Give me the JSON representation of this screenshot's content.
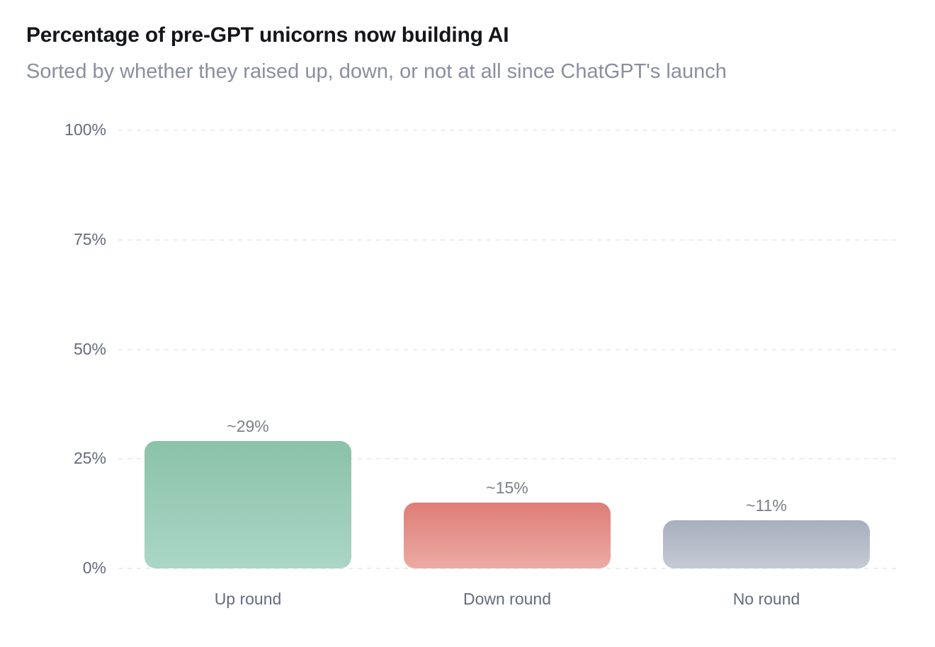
{
  "chart_data": {
    "type": "bar",
    "title": "Percentage of pre-GPT unicorns now building AI",
    "subtitle": "Sorted by whether they raised up, down, or not at all since ChatGPT's launch",
    "categories": [
      "Up round",
      "Down round",
      "No round"
    ],
    "values": [
      29,
      15,
      11
    ],
    "value_labels": [
      "~29%",
      "~15%",
      "~11%"
    ],
    "y_ticks": [
      {
        "label": "100%",
        "value": 100
      },
      {
        "label": "75%",
        "value": 75
      },
      {
        "label": "50%",
        "value": 50
      },
      {
        "label": "25%",
        "value": 25
      },
      {
        "label": "0%",
        "value": 0
      }
    ],
    "ylim": [
      0,
      100
    ],
    "xlabel": "",
    "ylabel": "",
    "grid": "horizontal-dashed",
    "legend": "none",
    "colors": {
      "background": "#ffffff",
      "title_text": "#15161a",
      "subtitle_text": "#8a8ea1",
      "axis_text": "#646b7d",
      "value_text": "#7b7e87",
      "gridline": "#ececec",
      "bar_gradients": [
        {
          "name": "green-up-round",
          "top": "#8bc2a8",
          "bottom": "#aad6c6"
        },
        {
          "name": "salmon-down-round",
          "top": "#df7d77",
          "bottom": "#ecaaa4"
        },
        {
          "name": "gray-no-round",
          "top": "#a7aebd",
          "bottom": "#c5cbd5"
        }
      ]
    }
  }
}
